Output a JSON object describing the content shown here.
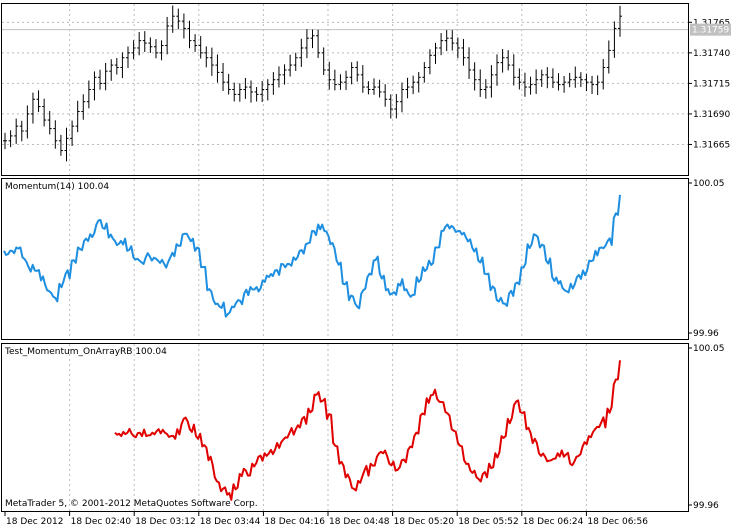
{
  "chart_data": [
    {
      "type": "bar",
      "subtype": "ohlc",
      "panel": "price",
      "ylim": [
        1.3164,
        1.3178
      ],
      "yticks": [
        "1.31765",
        "1.31740",
        "1.31715",
        "1.31690",
        "1.31665"
      ],
      "current_price": "1.31759",
      "grid": "dashed",
      "series": [
        {
          "name": "",
          "values": [
            1.31668,
            1.31672,
            1.3168,
            1.31676,
            1.3169,
            1.31702,
            1.31696,
            1.31685,
            1.31678,
            1.31668,
            1.3166,
            1.3167,
            1.3168,
            1.31692,
            1.317,
            1.3171,
            1.3172,
            1.31715,
            1.31725,
            1.3173,
            1.31728,
            1.31736,
            1.3174,
            1.31744,
            1.3175,
            1.31748,
            1.31745,
            1.3174,
            1.31746,
            1.31762,
            1.3177,
            1.31766,
            1.3176,
            1.3175,
            1.31746,
            1.3174,
            1.31736,
            1.3173,
            1.31724,
            1.31716,
            1.3171,
            1.31706,
            1.3171,
            1.31712,
            1.31708,
            1.31706,
            1.3171,
            1.31714,
            1.31718,
            1.31722,
            1.31726,
            1.3173,
            1.31736,
            1.31744,
            1.31752,
            1.31754,
            1.3174,
            1.31726,
            1.31718,
            1.31714,
            1.31716,
            1.3172,
            1.31728,
            1.31722,
            1.31712,
            1.3171,
            1.31712,
            1.31708,
            1.31702,
            1.31694,
            1.317,
            1.3171,
            1.31712,
            1.31716,
            1.3172,
            1.31728,
            1.31738,
            1.31744,
            1.3175,
            1.31752,
            1.31748,
            1.31744,
            1.31736,
            1.31726,
            1.31718,
            1.3171,
            1.31712,
            1.31722,
            1.31732,
            1.31736,
            1.3173,
            1.3172,
            1.31716,
            1.31712,
            1.31714,
            1.31718,
            1.31722,
            1.3172,
            1.31716,
            1.31714,
            1.31716,
            1.31718,
            1.3172,
            1.31718,
            1.31716,
            1.31714,
            1.31716,
            1.31728,
            1.31742,
            1.3176,
            1.3177
          ]
        }
      ]
    },
    {
      "type": "line",
      "panel": "indicator",
      "title": "Momentum(14) 100.04",
      "ylim": [
        99.96,
        100.05
      ],
      "yticks": [
        "100.05",
        "99.96"
      ],
      "color": "#1e8fe0",
      "series": [
        {
          "name": "",
          "values": [
            100.01,
            100.01,
            100.012,
            100.006,
            100.0,
            99.998,
            99.992,
            99.986,
            99.982,
            99.99,
            99.996,
            100.004,
            100.012,
            100.016,
            100.02,
            100.026,
            100.024,
            100.018,
            100.016,
            100.016,
            100.01,
            100.006,
            100.004,
            100.006,
            100.004,
            100.004,
            100.002,
            100.006,
            100.014,
            100.02,
            100.018,
            100.01,
            100.0,
            99.986,
            99.98,
            99.976,
            99.97,
            99.976,
            99.98,
            99.984,
            99.988,
            99.988,
            99.992,
            99.994,
            99.998,
            100.002,
            100.002,
            100.006,
            100.01,
            100.014,
            100.022,
            100.026,
            100.022,
            100.014,
            100.004,
            99.99,
            99.98,
            99.978,
            99.984,
            99.994,
            100.004,
            99.996,
            99.986,
            99.984,
            99.99,
            99.986,
            99.982,
            99.994,
            100.0,
            100.004,
            100.012,
            100.022,
            100.026,
            100.024,
            100.022,
            100.018,
            100.012,
            100.004,
            99.996,
            99.986,
            99.98,
            99.978,
            99.984,
            99.99,
            100.0,
            100.014,
            100.02,
            100.012,
            100.004,
            99.994,
            99.99,
            99.986,
            99.99,
            99.994,
            99.998,
            100.004,
            100.01,
            100.012,
            100.016,
            100.03,
            100.044
          ]
        }
      ]
    },
    {
      "type": "line",
      "panel": "indicator",
      "title": "Test_Momentum_OnArrayRB 100.04",
      "ylim": [
        99.96,
        100.05
      ],
      "yticks": [
        "100.05",
        "99.96"
      ],
      "color": "#e00000",
      "series": [
        {
          "name": "",
          "values": [
            100.002,
            100.0,
            100.002,
            100.0,
            100.002,
            100.0,
            100.002,
            100.004,
            100.002,
            100.0,
            100.004,
            100.01,
            100.004,
            100.0,
            99.994,
            99.986,
            99.976,
            99.968,
            99.966,
            99.972,
            99.978,
            99.98,
            99.984,
            99.988,
            99.99,
            99.992,
            99.996,
            99.998,
            100.002,
            100.004,
            100.01,
            100.016,
            100.024,
            100.02,
            100.01,
            99.996,
            99.984,
            99.976,
            99.97,
            99.974,
            99.98,
            99.984,
            99.988,
            99.99,
            99.984,
            99.98,
            99.986,
            99.992,
            100.0,
            100.012,
            100.022,
            100.024,
            100.02,
            100.014,
            100.004,
            99.996,
            99.986,
            99.98,
            99.976,
            99.978,
            99.984,
            99.99,
            100.0,
            100.01,
            100.018,
            100.014,
            100.004,
            99.996,
            99.99,
            99.988,
            99.986,
            99.99,
            99.988,
            99.984,
            99.988,
            99.994,
            100.0,
            100.004,
            100.008,
            100.016,
            100.03,
            100.044
          ]
        }
      ]
    }
  ],
  "time_axis": {
    "labels": [
      "18 Dec 2012",
      "18 Dec 02:40",
      "18 Dec 03:12",
      "18 Dec 03:44",
      "18 Dec 04:16",
      "18 Dec 04:48",
      "18 Dec 05:20",
      "18 Dec 05:52",
      "18 Dec 06:24",
      "18 Dec 06:56"
    ]
  },
  "copyright": "MetaTrader 5, © 2001-2012 MetaQuotes Software Corp."
}
